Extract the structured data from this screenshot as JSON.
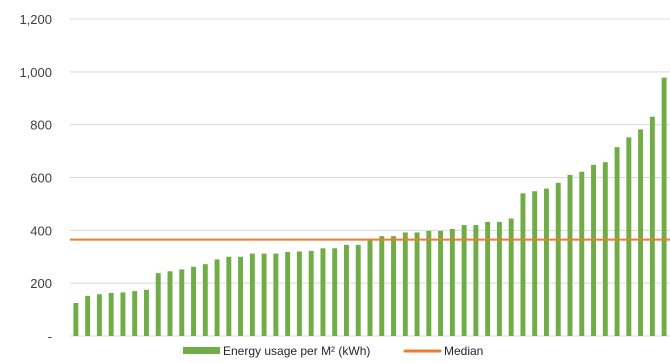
{
  "chart_data": {
    "type": "bar",
    "title": "",
    "xlabel": "",
    "ylabel": "",
    "ylim": [
      0,
      1200
    ],
    "yticks": [
      0,
      200,
      400,
      600,
      800,
      1000,
      1200
    ],
    "ytick_labels": [
      "-",
      "200",
      "400",
      "600",
      "800",
      "1,000",
      "1,200"
    ],
    "grid": "horizontal",
    "legend_position": "bottom",
    "series": [
      {
        "name": "Energy usage per M² (kWh)",
        "color": "#70ad47",
        "values": [
          125,
          152,
          158,
          163,
          165,
          170,
          175,
          238,
          245,
          252,
          262,
          272,
          290,
          300,
          300,
          312,
          312,
          312,
          318,
          320,
          322,
          332,
          332,
          345,
          345,
          365,
          378,
          378,
          392,
          392,
          398,
          398,
          405,
          420,
          420,
          432,
          432,
          445,
          540,
          548,
          558,
          580,
          610,
          622,
          648,
          658,
          715,
          752,
          782,
          830,
          978
        ]
      }
    ],
    "median": {
      "name": "Median",
      "value": 365,
      "color": "#ed7d31"
    }
  }
}
